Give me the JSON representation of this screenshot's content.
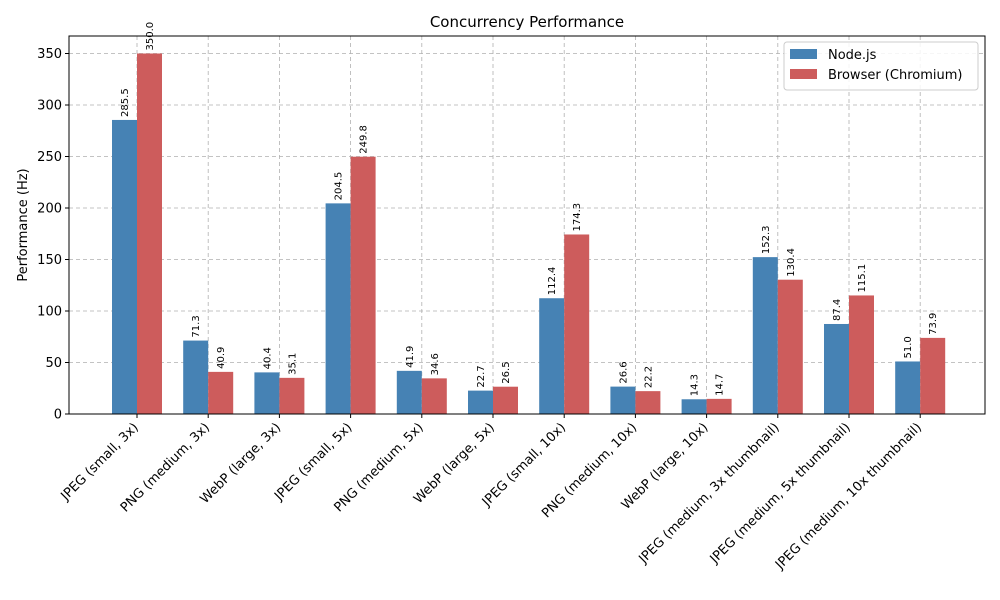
{
  "chart_data": {
    "type": "bar",
    "title": "Concurrency Performance",
    "xlabel": "",
    "ylabel": "Performance (Hz)",
    "ylim": [
      0,
      367
    ],
    "yticks": [
      0,
      50,
      100,
      150,
      200,
      250,
      300,
      350
    ],
    "grid": true,
    "legend_position": "top-right",
    "categories": [
      "JPEG (small, 3x)",
      "PNG (medium, 3x)",
      "WebP (large, 3x)",
      "JPEG (small, 5x)",
      "PNG (medium, 5x)",
      "WebP (large, 5x)",
      "JPEG (small, 10x)",
      "PNG (medium, 10x)",
      "WebP (large, 10x)",
      "JPEG (medium, 3x thumbnail)",
      "JPEG (medium, 5x thumbnail)",
      "JPEG (medium, 10x thumbnail)"
    ],
    "series": [
      {
        "name": "Node.js",
        "color": "#4682b4",
        "values": [
          285.5,
          71.3,
          40.4,
          204.5,
          41.9,
          22.7,
          112.4,
          26.6,
          14.3,
          152.3,
          87.4,
          51.0
        ],
        "labels": [
          "285.5",
          "71.3",
          "40.4",
          "204.5",
          "41.9",
          "22.7",
          "112.4",
          "26.6",
          "14.3",
          "152.3",
          "87.4",
          "51.0"
        ]
      },
      {
        "name": "Browser (Chromium)",
        "color": "#cd5c5c",
        "values": [
          350.0,
          40.9,
          35.1,
          249.8,
          34.6,
          26.5,
          174.3,
          22.2,
          14.7,
          130.4,
          115.1,
          73.9
        ],
        "labels": [
          "350.0",
          "40.9",
          "35.1",
          "249.8",
          "34.6",
          "26.5",
          "174.3",
          "22.2",
          "14.7",
          "130.4",
          "115.1",
          "73.9"
        ]
      }
    ]
  }
}
